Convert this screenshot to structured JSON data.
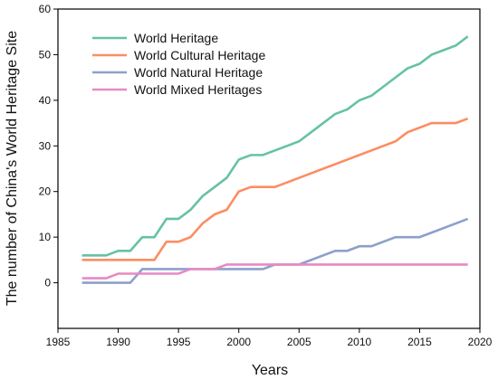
{
  "chart_data": {
    "type": "line",
    "title": "",
    "xlabel": "Years",
    "ylabel": "The number of China's World Heritage Site",
    "xlim": [
      1985,
      2020
    ],
    "ylim": [
      -10,
      60
    ],
    "xticks": [
      1985,
      1990,
      1995,
      2000,
      2005,
      2010,
      2015,
      2020
    ],
    "yticks": [
      0,
      10,
      20,
      30,
      40,
      50,
      60
    ],
    "grid": false,
    "legend_position": "top-left",
    "series": [
      {
        "name": "World Heritage",
        "color": "#66c2a5",
        "x": [
          1987,
          1989,
          1990,
          1991,
          1992,
          1993,
          1994,
          1995,
          1996,
          1997,
          1998,
          1999,
          2000,
          2001,
          2002,
          2003,
          2004,
          2005,
          2006,
          2007,
          2008,
          2009,
          2010,
          2011,
          2012,
          2013,
          2014,
          2015,
          2016,
          2017,
          2018,
          2019
        ],
        "y": [
          6,
          6,
          7,
          7,
          10,
          10,
          14,
          14,
          16,
          19,
          21,
          23,
          27,
          28,
          28,
          29,
          30,
          31,
          33,
          35,
          37,
          38,
          40,
          41,
          43,
          45,
          47,
          48,
          50,
          51,
          52,
          54
        ]
      },
      {
        "name": "World Cultural Heritage",
        "color": "#fc8d62",
        "x": [
          1987,
          1993,
          1994,
          1995,
          1996,
          1997,
          1998,
          1999,
          2000,
          2001,
          2003,
          2013,
          2014,
          2016,
          2018,
          2019
        ],
        "y": [
          5,
          5,
          9,
          9,
          10,
          13,
          15,
          16,
          20,
          21,
          21,
          31,
          33,
          35,
          35,
          36
        ]
      },
      {
        "name": "World Natural Heritage",
        "color": "#8da0cb",
        "x": [
          1987,
          1991,
          1992,
          2002,
          2003,
          2005,
          2008,
          2009,
          2010,
          2011,
          2013,
          2015,
          2019
        ],
        "y": [
          0,
          0,
          3,
          3,
          4,
          4,
          7,
          7,
          8,
          8,
          10,
          10,
          14
        ]
      },
      {
        "name": "World Mixed Heritages",
        "color": "#e78ac3",
        "x": [
          1987,
          1989,
          1990,
          1992,
          1995,
          1996,
          1998,
          1999,
          2019
        ],
        "y": [
          1,
          1,
          2,
          2,
          2,
          3,
          3,
          4,
          4
        ]
      }
    ]
  }
}
